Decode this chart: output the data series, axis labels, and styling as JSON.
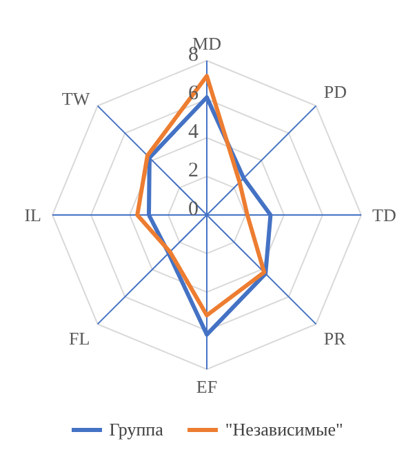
{
  "chart_data": {
    "type": "radar",
    "categories": [
      "MD",
      "PD",
      "TD",
      "PR",
      "EF",
      "FL",
      "IL",
      "TW"
    ],
    "series": [
      {
        "name": "Группа",
        "color": "#4472c4",
        "values": [
          6.1,
          2.7,
          3.3,
          4.3,
          6.2,
          2.8,
          3.0,
          4.2
        ]
      },
      {
        "name": "\"Независимые\"",
        "color": "#ed7d31",
        "values": [
          7.2,
          2.4,
          2.1,
          4.2,
          5.2,
          2.7,
          3.6,
          4.35
        ]
      }
    ],
    "ylim": [
      0,
      8
    ],
    "yticks": [
      0,
      2,
      4,
      6,
      8
    ],
    "grid": true,
    "legend": "bottom"
  }
}
